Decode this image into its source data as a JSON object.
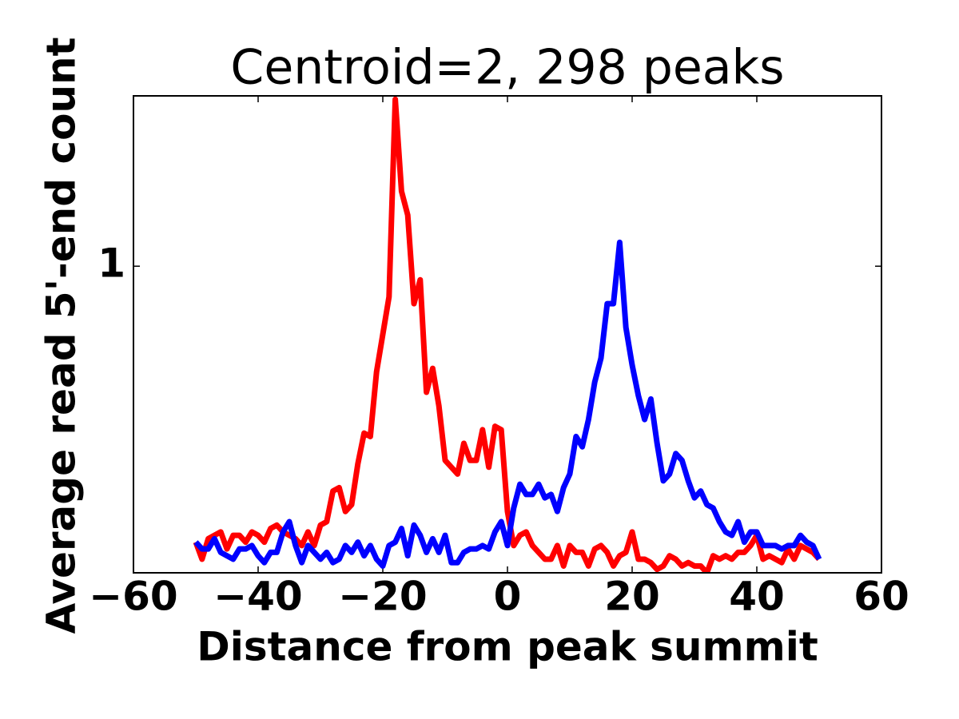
{
  "chart_data": {
    "type": "line",
    "title": "Centroid=2, 298 peaks",
    "x_label": "Distance from peak summit",
    "y_label": "Average read 5'-end count",
    "xlim": [
      -60,
      60
    ],
    "ylim": [
      0.1,
      1.5
    ],
    "xticks": [
      {
        "value": -60,
        "label": "−60"
      },
      {
        "value": -40,
        "label": "−40"
      },
      {
        "value": -20,
        "label": "−20"
      },
      0,
      20,
      40,
      60
    ],
    "yticks": [
      1
    ],
    "grid": false,
    "x": [
      -50,
      -49,
      -48,
      -47,
      -46,
      -45,
      -44,
      -43,
      -42,
      -41,
      -40,
      -39,
      -38,
      -37,
      -36,
      -35,
      -34,
      -33,
      -32,
      -31,
      -30,
      -29,
      -28,
      -27,
      -26,
      -25,
      -24,
      -23,
      -22,
      -21,
      -20,
      -19,
      -18,
      -17,
      -16,
      -15,
      -14,
      -13,
      -12,
      -11,
      -10,
      -9,
      -8,
      -7,
      -6,
      -5,
      -4,
      -3,
      -2,
      -1,
      0,
      1,
      2,
      3,
      4,
      5,
      6,
      7,
      8,
      9,
      10,
      11,
      12,
      13,
      14,
      15,
      16,
      17,
      18,
      19,
      20,
      21,
      22,
      23,
      24,
      25,
      26,
      27,
      28,
      29,
      30,
      31,
      32,
      33,
      34,
      35,
      36,
      37,
      38,
      39,
      40,
      41,
      42,
      43,
      44,
      45,
      46,
      47,
      48,
      49,
      50
    ],
    "series": [
      {
        "color": "#ff0000",
        "values": [
          0.19,
          0.14,
          0.2,
          0.21,
          0.22,
          0.17,
          0.21,
          0.21,
          0.19,
          0.22,
          0.21,
          0.19,
          0.23,
          0.24,
          0.22,
          0.21,
          0.2,
          0.18,
          0.22,
          0.18,
          0.24,
          0.25,
          0.34,
          0.35,
          0.28,
          0.3,
          0.42,
          0.51,
          0.5,
          0.69,
          0.8,
          0.91,
          1.49,
          1.22,
          1.15,
          0.89,
          0.96,
          0.63,
          0.7,
          0.59,
          0.43,
          0.41,
          0.39,
          0.48,
          0.43,
          0.43,
          0.52,
          0.41,
          0.53,
          0.52,
          0.28,
          0.18,
          0.21,
          0.22,
          0.18,
          0.16,
          0.14,
          0.14,
          0.18,
          0.12,
          0.18,
          0.16,
          0.16,
          0.12,
          0.17,
          0.18,
          0.16,
          0.12,
          0.15,
          0.16,
          0.22,
          0.14,
          0.14,
          0.13,
          0.11,
          0.12,
          0.15,
          0.14,
          0.12,
          0.13,
          0.12,
          0.12,
          0.1,
          0.15,
          0.14,
          0.15,
          0.14,
          0.16,
          0.16,
          0.18,
          0.21,
          0.14,
          0.15,
          0.14,
          0.13,
          0.17,
          0.14,
          0.18,
          0.17,
          0.16,
          0.14
        ]
      },
      {
        "color": "#0000ff",
        "values": [
          0.19,
          0.17,
          0.17,
          0.2,
          0.16,
          0.15,
          0.14,
          0.17,
          0.17,
          0.18,
          0.15,
          0.13,
          0.16,
          0.16,
          0.22,
          0.25,
          0.18,
          0.13,
          0.18,
          0.16,
          0.14,
          0.16,
          0.13,
          0.14,
          0.18,
          0.16,
          0.19,
          0.15,
          0.18,
          0.14,
          0.12,
          0.18,
          0.19,
          0.23,
          0.15,
          0.24,
          0.21,
          0.16,
          0.2,
          0.16,
          0.21,
          0.13,
          0.13,
          0.16,
          0.17,
          0.17,
          0.18,
          0.17,
          0.22,
          0.25,
          0.18,
          0.29,
          0.36,
          0.33,
          0.33,
          0.36,
          0.32,
          0.33,
          0.28,
          0.35,
          0.39,
          0.5,
          0.47,
          0.55,
          0.66,
          0.73,
          0.89,
          0.89,
          1.07,
          0.82,
          0.71,
          0.62,
          0.55,
          0.61,
          0.48,
          0.37,
          0.39,
          0.45,
          0.43,
          0.37,
          0.32,
          0.34,
          0.3,
          0.29,
          0.25,
          0.22,
          0.21,
          0.25,
          0.19,
          0.22,
          0.22,
          0.18,
          0.18,
          0.18,
          0.17,
          0.18,
          0.18,
          0.21,
          0.19,
          0.18,
          0.14
        ]
      }
    ]
  }
}
